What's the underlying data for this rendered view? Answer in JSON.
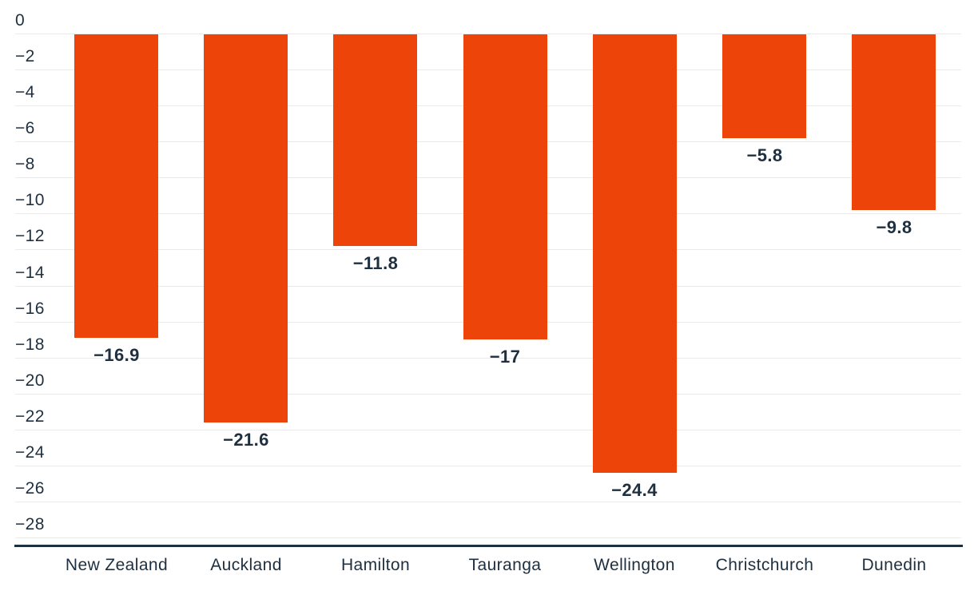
{
  "chart_data": {
    "type": "bar",
    "title": "",
    "xlabel": "",
    "ylabel": "",
    "categories": [
      "New Zealand",
      "Auckland",
      "Hamilton",
      "Tauranga",
      "Wellington",
      "Christchurch",
      "Dunedin"
    ],
    "values": [
      -16.9,
      -21.6,
      -11.8,
      -17,
      -24.4,
      -5.8,
      -9.8
    ],
    "value_labels": [
      "−16.9",
      "−21.6",
      "−11.8",
      "−17",
      "−24.4",
      "−5.8",
      "−9.8"
    ],
    "y_ticks": [
      {
        "value": 0,
        "label": "0"
      },
      {
        "value": -2,
        "label": "−2"
      },
      {
        "value": -4,
        "label": "−4"
      },
      {
        "value": -6,
        "label": "−6"
      },
      {
        "value": -8,
        "label": "−8"
      },
      {
        "value": -10,
        "label": "−10"
      },
      {
        "value": -12,
        "label": "−12"
      },
      {
        "value": -14,
        "label": "−14"
      },
      {
        "value": -16,
        "label": "−16"
      },
      {
        "value": -18,
        "label": "−18"
      },
      {
        "value": -20,
        "label": "−20"
      },
      {
        "value": -22,
        "label": "−22"
      },
      {
        "value": -24,
        "label": "−24"
      },
      {
        "value": -26,
        "label": "−26"
      },
      {
        "value": -28,
        "label": "−28"
      }
    ],
    "ylim": [
      -28,
      0
    ],
    "grid": "horizontal",
    "legend": "none",
    "colors": {
      "bar": "#ec4409",
      "text": "#1e2f40",
      "gridline": "#eaeaea",
      "axis_line": "#1e2f40",
      "background": "#ffffff"
    }
  }
}
